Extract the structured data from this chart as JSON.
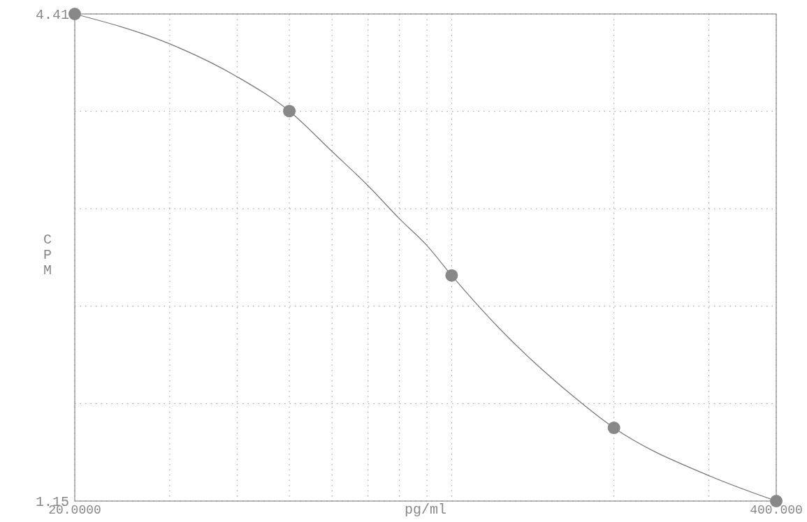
{
  "chart_data": {
    "type": "scatter",
    "xlabel": "pg/ml",
    "ylabel": "CPM",
    "log": "x",
    "grid": true,
    "line_style": "solid",
    "xlim": [
      20,
      400
    ],
    "ylim": [
      1.15,
      4.41
    ],
    "xticks": [
      {
        "value": 20,
        "label": "20.0000"
      },
      {
        "value": 30,
        "label": null
      },
      {
        "value": 40,
        "label": null
      },
      {
        "value": 50,
        "label": null
      },
      {
        "value": 60,
        "label": null
      },
      {
        "value": 70,
        "label": null
      },
      {
        "value": 80,
        "label": null
      },
      {
        "value": 90,
        "label": null
      },
      {
        "value": 100,
        "label": null
      },
      {
        "value": 200,
        "label": null
      },
      {
        "value": 300,
        "label": null
      },
      {
        "value": 400,
        "label": "400.000"
      }
    ],
    "yticks": [
      1.15,
      {
        "value": 1.802,
        "label": null
      },
      {
        "value": 2.454,
        "label": null
      },
      {
        "value": 3.106,
        "label": null
      },
      {
        "value": 3.758,
        "label": null
      },
      4.41
    ],
    "series": [
      {
        "type": "line",
        "marker": "none",
        "color": "#777777",
        "x": [
          20,
          30,
          40,
          50,
          60,
          70,
          80,
          90,
          100,
          123,
          167,
          200,
          300,
          400
        ],
        "values": [
          4.41,
          4.21,
          3.99,
          3.76,
          3.49,
          3.26,
          3.04,
          2.86,
          2.66,
          2.3,
          1.86,
          1.64,
          1.32,
          1.15
        ]
      },
      {
        "marker": "circle",
        "color": "#888888",
        "x": [
          20,
          50,
          100,
          200,
          400
        ],
        "values": [
          4.41,
          3.76,
          2.66,
          1.64,
          1.15
        ]
      }
    ]
  }
}
